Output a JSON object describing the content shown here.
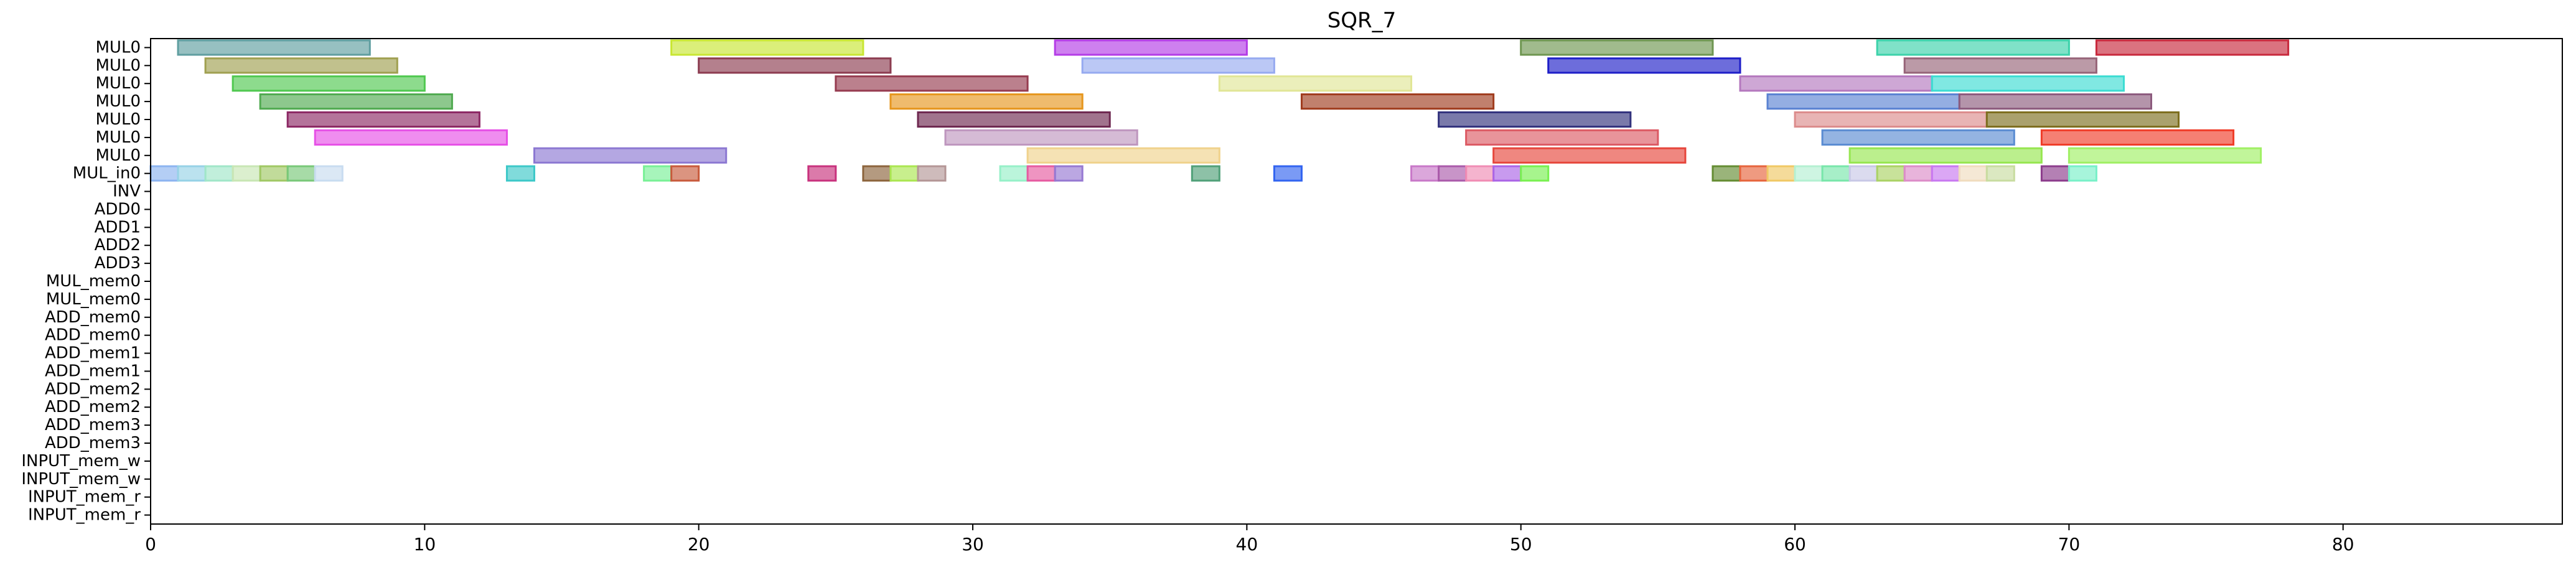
{
  "chart_data": {
    "type": "gantt",
    "title": "SQR_7",
    "xlabel": "",
    "ylabel": "",
    "xlim": [
      0,
      88
    ],
    "x_ticks": [
      0,
      10,
      20,
      30,
      40,
      50,
      60,
      70,
      80
    ],
    "grid": false,
    "legend": "none",
    "rows": [
      "MUL0",
      "MUL0",
      "MUL0",
      "MUL0",
      "MUL0",
      "MUL0",
      "MUL0",
      "MUL_in0",
      "INV",
      "ADD0",
      "ADD1",
      "ADD2",
      "ADD3",
      "MUL_mem0",
      "MUL_mem0",
      "ADD_mem0",
      "ADD_mem0",
      "ADD_mem1",
      "ADD_mem1",
      "ADD_mem2",
      "ADD_mem2",
      "ADD_mem3",
      "ADD_mem3",
      "INPUT_mem_w",
      "INPUT_mem_w",
      "INPUT_mem_r",
      "INPUT_mem_r"
    ],
    "long_bars": [
      {
        "row": 0,
        "start": 1,
        "end": 8,
        "color": "#5f9ea0"
      },
      {
        "row": 0,
        "start": 19,
        "end": 26,
        "color": "#c8e632"
      },
      {
        "row": 0,
        "start": 33,
        "end": 40,
        "color": "#b43ce6"
      },
      {
        "row": 0,
        "start": 50,
        "end": 57,
        "color": "#6e9650"
      },
      {
        "row": 0,
        "start": 63,
        "end": 70,
        "color": "#3cd2aa"
      },
      {
        "row": 0,
        "start": 71,
        "end": 78,
        "color": "#c8283c"
      },
      {
        "row": 1,
        "start": 2,
        "end": 9,
        "color": "#a0a050"
      },
      {
        "row": 1,
        "start": 20,
        "end": 27,
        "color": "#8c3c50"
      },
      {
        "row": 1,
        "start": 34,
        "end": 41,
        "color": "#96aaf0"
      },
      {
        "row": 1,
        "start": 51,
        "end": 58,
        "color": "#1e1ec8"
      },
      {
        "row": 1,
        "start": 64,
        "end": 71,
        "color": "#966478"
      },
      {
        "row": 2,
        "start": 3,
        "end": 10,
        "color": "#50c850"
      },
      {
        "row": 2,
        "start": 25,
        "end": 32,
        "color": "#963c50"
      },
      {
        "row": 2,
        "start": 39,
        "end": 46,
        "color": "#e1e696"
      },
      {
        "row": 2,
        "start": 58,
        "end": 65,
        "color": "#b478be"
      },
      {
        "row": 2,
        "start": 65,
        "end": 72,
        "color": "#3cdcd2"
      },
      {
        "row": 3,
        "start": 4,
        "end": 11,
        "color": "#50aa50"
      },
      {
        "row": 3,
        "start": 27,
        "end": 34,
        "color": "#e6961e"
      },
      {
        "row": 3,
        "start": 42,
        "end": 49,
        "color": "#a03c1e"
      },
      {
        "row": 3,
        "start": 59,
        "end": 66,
        "color": "#5a82d2"
      },
      {
        "row": 3,
        "start": 66,
        "end": 73,
        "color": "#8c5a7d"
      },
      {
        "row": 4,
        "start": 5,
        "end": 12,
        "color": "#8c2864"
      },
      {
        "row": 4,
        "start": 28,
        "end": 35,
        "color": "#6e2850"
      },
      {
        "row": 4,
        "start": 47,
        "end": 54,
        "color": "#32327d"
      },
      {
        "row": 4,
        "start": 60,
        "end": 67,
        "color": "#dc8c8c"
      },
      {
        "row": 4,
        "start": 67,
        "end": 74,
        "color": "#7d6e1e"
      },
      {
        "row": 5,
        "start": 6,
        "end": 13,
        "color": "#e650e6"
      },
      {
        "row": 5,
        "start": 29,
        "end": 36,
        "color": "#be96be"
      },
      {
        "row": 5,
        "start": 48,
        "end": 55,
        "color": "#dc5a64"
      },
      {
        "row": 5,
        "start": 61,
        "end": 68,
        "color": "#5a8cd2"
      },
      {
        "row": 5,
        "start": 69,
        "end": 76,
        "color": "#f03c28"
      },
      {
        "row": 6,
        "start": 14,
        "end": 21,
        "color": "#8c78d2"
      },
      {
        "row": 6,
        "start": 32,
        "end": 39,
        "color": "#f0d28c"
      },
      {
        "row": 6,
        "start": 49,
        "end": 56,
        "color": "#e6463c"
      },
      {
        "row": 6,
        "start": 62,
        "end": 69,
        "color": "#96e650"
      },
      {
        "row": 6,
        "start": 70,
        "end": 77,
        "color": "#a0f064"
      }
    ],
    "unit_cells": [
      {
        "row": 7,
        "start": 0,
        "color": "#8cb4f0"
      },
      {
        "row": 7,
        "start": 1,
        "color": "#96d2e6"
      },
      {
        "row": 7,
        "start": 2,
        "color": "#a0e6c8"
      },
      {
        "row": 7,
        "start": 3,
        "color": "#c8e6b4"
      },
      {
        "row": 7,
        "start": 4,
        "color": "#a0c864"
      },
      {
        "row": 7,
        "start": 5,
        "color": "#78c878"
      },
      {
        "row": 7,
        "start": 6,
        "color": "#c8dcf0"
      },
      {
        "row": 7,
        "start": 13,
        "color": "#3cc8c8"
      },
      {
        "row": 7,
        "start": 18,
        "color": "#78f096"
      },
      {
        "row": 7,
        "start": 19,
        "color": "#c85a3c"
      },
      {
        "row": 7,
        "start": 24,
        "color": "#c8327d"
      },
      {
        "row": 7,
        "start": 26,
        "color": "#8c643c"
      },
      {
        "row": 7,
        "start": 27,
        "color": "#aae650"
      },
      {
        "row": 7,
        "start": 28,
        "color": "#b49696"
      },
      {
        "row": 7,
        "start": 31,
        "color": "#96f0c8"
      },
      {
        "row": 7,
        "start": 32,
        "color": "#e65aa0"
      },
      {
        "row": 7,
        "start": 33,
        "color": "#9678d2"
      },
      {
        "row": 7,
        "start": 38,
        "color": "#50a078"
      },
      {
        "row": 7,
        "start": 41,
        "color": "#3264f0"
      },
      {
        "row": 7,
        "start": 46,
        "color": "#c878c8"
      },
      {
        "row": 7,
        "start": 47,
        "color": "#aa5aaa"
      },
      {
        "row": 7,
        "start": 48,
        "color": "#f08cb4"
      },
      {
        "row": 7,
        "start": 49,
        "color": "#aa64e6"
      },
      {
        "row": 7,
        "start": 50,
        "color": "#78f050"
      },
      {
        "row": 7,
        "start": 57,
        "color": "#648c32"
      },
      {
        "row": 7,
        "start": 58,
        "color": "#e6643c"
      },
      {
        "row": 7,
        "start": 59,
        "color": "#f0c864"
      },
      {
        "row": 7,
        "start": 60,
        "color": "#b4f0d2"
      },
      {
        "row": 7,
        "start": 61,
        "color": "#78e6aa"
      },
      {
        "row": 7,
        "start": 62,
        "color": "#c8c8e6"
      },
      {
        "row": 7,
        "start": 63,
        "color": "#aad264"
      },
      {
        "row": 7,
        "start": 64,
        "color": "#dc8cc8"
      },
      {
        "row": 7,
        "start": 65,
        "color": "#c878f0"
      },
      {
        "row": 7,
        "start": 66,
        "color": "#f0dcbe"
      },
      {
        "row": 7,
        "start": 67,
        "color": "#c8dca0"
      },
      {
        "row": 7,
        "start": 69,
        "color": "#8c3c8c"
      },
      {
        "row": 7,
        "start": 70,
        "color": "#78f0c8"
      }
    ],
    "bar_height": 0.8
  }
}
